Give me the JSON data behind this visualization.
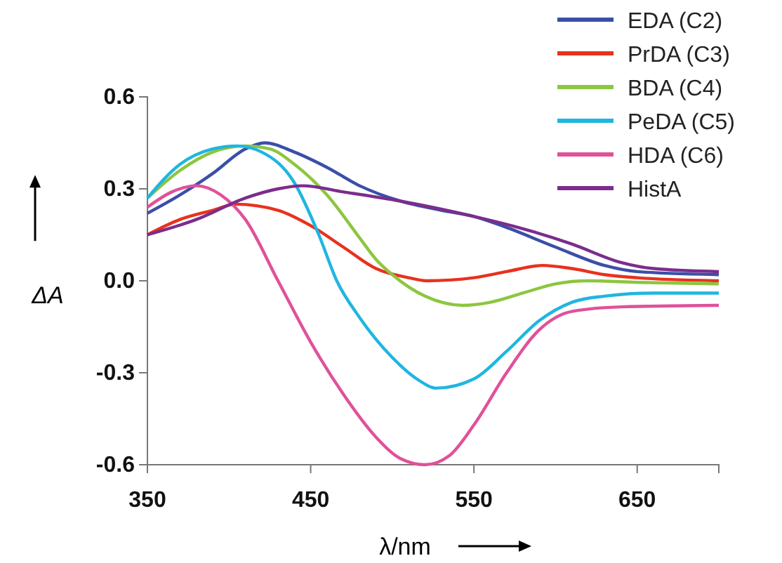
{
  "chart_data": {
    "type": "line",
    "xlabel": "λ/nm",
    "ylabel": "ΔA",
    "xlim": [
      350,
      700
    ],
    "ylim": [
      -0.6,
      0.6
    ],
    "xticks": [
      350,
      450,
      550,
      650
    ],
    "yticks": [
      {
        "value": 0.6,
        "label": "0.6"
      },
      {
        "value": 0.3,
        "label": "0.3"
      },
      {
        "value": 0,
        "label": "0.0"
      },
      {
        "value": -0.3,
        "label": "-0.3"
      },
      {
        "value": -0.6,
        "label": "-0.6"
      }
    ],
    "grid": false,
    "legend": "top right",
    "marker": "none",
    "line_style": "solid",
    "series": [
      {
        "name": "EDA (C2)",
        "color": "#3a4fa8",
        "x": [
          350,
          370,
          390,
          410,
          422,
          440,
          460,
          480,
          505,
          530,
          550,
          567,
          600,
          630,
          650,
          700
        ],
        "values": [
          0.22,
          0.28,
          0.35,
          0.43,
          0.45,
          0.42,
          0.37,
          0.31,
          0.26,
          0.23,
          0.21,
          0.18,
          0.11,
          0.05,
          0.03,
          0.02
        ]
      },
      {
        "name": "PrDA (C3)",
        "color": "#e8321e",
        "x": [
          350,
          370,
          390,
          404,
          430,
          450,
          470,
          490,
          510,
          521,
          550,
          570,
          592,
          610,
          630,
          650,
          700
        ],
        "values": [
          0.15,
          0.2,
          0.23,
          0.25,
          0.23,
          0.18,
          0.11,
          0.04,
          0.01,
          0.0,
          0.01,
          0.03,
          0.05,
          0.04,
          0.02,
          0.01,
          0.0
        ]
      },
      {
        "name": "BDA (C4)",
        "color": "#8cc63f",
        "x": [
          350,
          370,
          390,
          410,
          425,
          440,
          460,
          480,
          490,
          500,
          520,
          543,
          560,
          580,
          600,
          620,
          650,
          700
        ],
        "values": [
          0.27,
          0.36,
          0.42,
          0.44,
          0.43,
          0.38,
          0.28,
          0.14,
          0.07,
          0.02,
          -0.05,
          -0.08,
          -0.07,
          -0.04,
          -0.01,
          0.0,
          -0.005,
          -0.01
        ]
      },
      {
        "name": "PeDA (C5)",
        "color": "#1fb6e0",
        "x": [
          350,
          370,
          390,
          405,
          420,
          440,
          455,
          466,
          480,
          500,
          515,
          527,
          550,
          570,
          590,
          610,
          630,
          660,
          700
        ],
        "values": [
          0.27,
          0.38,
          0.43,
          0.44,
          0.42,
          0.32,
          0.15,
          0.0,
          -0.12,
          -0.25,
          -0.32,
          -0.35,
          -0.32,
          -0.23,
          -0.13,
          -0.07,
          -0.05,
          -0.04,
          -0.04
        ]
      },
      {
        "name": "HDA (C6)",
        "color": "#e0519a",
        "x": [
          350,
          365,
          380,
          395,
          410,
          430,
          450,
          470,
          490,
          505,
          520,
          535,
          550,
          570,
          590,
          610,
          640,
          700
        ],
        "values": [
          0.24,
          0.29,
          0.31,
          0.28,
          0.2,
          0.0,
          -0.2,
          -0.37,
          -0.51,
          -0.58,
          -0.6,
          -0.57,
          -0.47,
          -0.3,
          -0.16,
          -0.1,
          -0.085,
          -0.08
        ]
      },
      {
        "name": "HistA",
        "color": "#7b2d8c",
        "x": [
          350,
          380,
          410,
          430,
          445,
          470,
          505,
          550,
          580,
          610,
          640,
          660,
          700
        ],
        "values": [
          0.15,
          0.2,
          0.27,
          0.3,
          0.31,
          0.29,
          0.26,
          0.21,
          0.17,
          0.12,
          0.06,
          0.04,
          0.03
        ]
      }
    ]
  }
}
